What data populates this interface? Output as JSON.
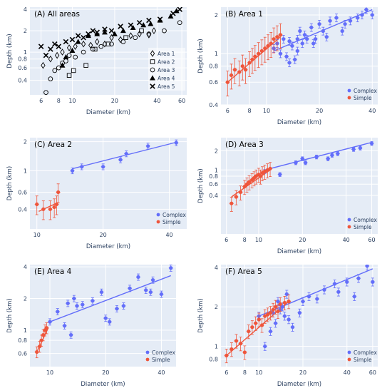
{
  "chart_data": [
    {
      "type": "scatter",
      "title": "(A) All areas",
      "xlabel": "Diameter (km)",
      "ylabel": "Depth (km)",
      "xscale": "log",
      "yscale": "log",
      "xlim": [
        5,
        65
      ],
      "ylim": [
        0.25,
        4.3
      ],
      "xticks": [
        6,
        8,
        10,
        20,
        40,
        60
      ],
      "yticks": [
        0.4,
        0.6,
        0.8,
        1,
        2,
        4
      ],
      "legend_position": "bottom-right",
      "show_fit": false,
      "series": [
        {
          "name": "Area 1",
          "marker": "diamond",
          "x": [
            6.2,
            7.0,
            7.8,
            8.5,
            9.5,
            10.5,
            12,
            13.5,
            15,
            17,
            19,
            22,
            26,
            30,
            35,
            38
          ],
          "y": [
            0.65,
            0.8,
            0.9,
            1.0,
            1.15,
            1.2,
            1.3,
            1.25,
            1.4,
            1.3,
            1.6,
            1.5,
            1.7,
            1.8,
            1.75,
            2.0
          ]
        },
        {
          "name": "Area 2",
          "marker": "square",
          "x": [
            9.5,
            10.2,
            12.5,
            14.5,
            18,
            24,
            31
          ],
          "y": [
            0.47,
            0.55,
            0.65,
            1.1,
            1.3,
            1.6,
            2.0
          ]
        },
        {
          "name": "Area 3",
          "marker": "circle",
          "x": [
            6.5,
            7.0,
            7.5,
            8.0,
            8.5,
            9.0,
            9.5,
            10.5,
            12,
            14,
            16,
            19,
            23,
            28,
            35,
            45,
            58
          ],
          "y": [
            0.27,
            0.42,
            0.55,
            0.6,
            0.7,
            0.75,
            0.9,
            0.85,
            1.0,
            1.1,
            1.2,
            1.3,
            1.4,
            1.6,
            1.8,
            2.0,
            2.6
          ]
        },
        {
          "name": "Area 4",
          "marker": "triangle",
          "x": [
            8.5,
            9.0,
            10,
            11,
            13,
            15,
            17,
            20,
            23,
            27,
            32,
            36,
            42,
            50,
            55
          ],
          "y": [
            0.65,
            0.85,
            1.05,
            1.4,
            1.7,
            1.8,
            1.9,
            1.8,
            2.0,
            2.2,
            2.4,
            2.5,
            2.8,
            3.2,
            3.8
          ]
        },
        {
          "name": "Area 5",
          "marker": "x",
          "x": [
            6,
            6.5,
            7,
            7.5,
            8,
            9,
            10,
            11,
            12,
            13,
            14,
            15,
            17,
            19,
            22,
            26,
            30,
            35,
            42,
            52,
            58
          ],
          "y": [
            1.2,
            0.9,
            1.1,
            1.3,
            1.2,
            1.4,
            1.5,
            1.7,
            1.6,
            1.8,
            2.0,
            1.9,
            2.1,
            2.0,
            2.3,
            2.4,
            2.6,
            2.8,
            2.9,
            3.5,
            4.0
          ]
        }
      ]
    },
    {
      "type": "scatter",
      "title": "(B) Area 1",
      "xlabel": "Diameter (km)",
      "ylabel": "Depth (km)",
      "xscale": "log",
      "yscale": "log",
      "xlim": [
        5.5,
        43
      ],
      "ylim": [
        0.4,
        2.3
      ],
      "xticks": [
        6,
        8,
        10,
        20,
        40
      ],
      "yticks": [
        0.4,
        0.6,
        0.8,
        1,
        2
      ],
      "legend_position": "bottom-right",
      "show_fit": true,
      "series": [
        {
          "name": "Complex",
          "x": [
            11.0,
            11.5,
            12.0,
            12.5,
            13.0,
            13.5,
            13.5,
            14.0,
            14.5,
            15.0,
            15.0,
            15.5,
            16.0,
            16.5,
            17.0,
            18.0,
            18.5,
            19.0,
            20.0,
            21.0,
            22.0,
            23.0,
            25.0,
            27.0,
            28.0,
            30.0,
            33.0,
            35.0,
            37.0,
            40.0
          ],
          "y": [
            1.1,
            1.2,
            1.0,
            1.3,
            0.95,
            1.25,
            0.85,
            1.15,
            0.9,
            1.3,
            1.05,
            1.5,
            1.2,
            1.4,
            1.3,
            1.6,
            1.2,
            1.3,
            1.7,
            1.5,
            1.35,
            1.8,
            1.9,
            1.5,
            1.7,
            1.8,
            1.9,
            2.0,
            2.2,
            2.0
          ],
          "yerr_frac": 0.07
        },
        {
          "name": "Simple",
          "x": [
            6.0,
            6.3,
            6.6,
            7.0,
            7.3,
            7.6,
            8.0,
            8.3,
            8.6,
            9.0,
            9.4,
            9.8,
            10.2,
            10.6,
            11.0,
            11.5,
            12.0
          ],
          "y": [
            0.6,
            0.68,
            0.75,
            0.72,
            0.8,
            0.75,
            0.85,
            0.9,
            0.95,
            1.0,
            1.05,
            1.1,
            1.15,
            1.2,
            1.3,
            1.35,
            1.4
          ],
          "yerr_frac": 0.22
        }
      ],
      "fit": {
        "Complex": {
          "x": [
            11.0,
            40.0
          ],
          "y": [
            1.05,
            2.2
          ]
        },
        "Simple": {
          "x": [
            6.0,
            12.0
          ],
          "y": [
            0.6,
            1.35
          ]
        }
      }
    },
    {
      "type": "scatter",
      "title": "(C) Area 2",
      "xlabel": "Diameter (km)",
      "ylabel": "Depth (km)",
      "xscale": "log",
      "yscale": "log",
      "xlim": [
        9.3,
        48
      ],
      "ylim": [
        0.25,
        2.2
      ],
      "xticks": [
        10,
        20,
        40
      ],
      "yticks": [
        0.4,
        0.6,
        1,
        2
      ],
      "legend_position": "bottom-right",
      "show_fit": true,
      "series": [
        {
          "name": "Complex",
          "x": [
            14.5,
            16.0,
            20.0,
            24.0,
            25.5,
            32.0,
            43.0
          ],
          "y": [
            1.0,
            1.1,
            1.1,
            1.3,
            1.5,
            1.8,
            1.95
          ],
          "yerr_frac": 0.07
        },
        {
          "name": "Simple",
          "x": [
            10.0,
            10.7,
            11.5,
            12.0,
            12.3,
            12.5
          ],
          "y": [
            0.45,
            0.4,
            0.4,
            0.42,
            0.45,
            0.6
          ],
          "yerr_frac": 0.22
        }
      ],
      "fit": {
        "Complex": {
          "x": [
            14.5,
            43.0
          ],
          "y": [
            1.05,
            1.97
          ]
        },
        "Simple": {
          "x": [
            10.2,
            12.5
          ],
          "y": [
            0.38,
            0.47
          ]
        }
      }
    },
    {
      "type": "scatter",
      "title": "(D) Area 3",
      "xlabel": "Diameter (km)",
      "ylabel": "Depth (km)",
      "xscale": "log",
      "yscale": "log",
      "xlim": [
        5.5,
        66
      ],
      "ylim": [
        0.1,
        3.2
      ],
      "xticks": [
        6,
        8,
        10,
        20,
        40,
        60
      ],
      "yticks": [
        0.4,
        0.6,
        0.8,
        1,
        2
      ],
      "legend_position": "bottom-right",
      "show_fit": true,
      "series": [
        {
          "name": "Complex",
          "x": [
            11.0,
            14.0,
            18.0,
            20.0,
            21.0,
            25.0,
            30.0,
            32.0,
            35.0,
            45.0,
            50.0,
            60.0
          ],
          "y": [
            0.95,
            0.85,
            1.3,
            1.5,
            1.3,
            1.6,
            1.5,
            1.7,
            1.8,
            2.1,
            2.2,
            2.6
          ],
          "yerr_frac": 0.07
        },
        {
          "name": "Simple",
          "x": [
            6.5,
            7.0,
            7.5,
            8.0,
            8.3,
            8.6,
            9.0,
            9.3,
            9.6,
            10.0,
            10.3,
            10.6,
            11.0,
            11.5,
            12.0
          ],
          "y": [
            0.3,
            0.38,
            0.45,
            0.55,
            0.6,
            0.65,
            0.7,
            0.75,
            0.8,
            0.85,
            0.8,
            0.9,
            0.95,
            1.0,
            1.05
          ],
          "yerr_frac": 0.25
        }
      ],
      "fit": {
        "Complex": {
          "x": [
            12.0,
            60.0
          ],
          "y": [
            1.05,
            2.7
          ]
        },
        "Simple": {
          "x": [
            6.5,
            12.0
          ],
          "y": [
            0.38,
            1.0
          ]
        }
      }
    },
    {
      "type": "scatter",
      "title": "(E) Area 4",
      "xlabel": "Diameter (km)",
      "ylabel": "Depth (km)",
      "xscale": "log",
      "yscale": "log",
      "xlim": [
        7.8,
        48
      ],
      "ylim": [
        0.45,
        4.2
      ],
      "xticks": [
        10,
        20,
        40
      ],
      "yticks": [
        0.6,
        0.8,
        1,
        2,
        4
      ],
      "legend_position": "bottom-right",
      "show_fit": true,
      "series": [
        {
          "name": "Complex",
          "x": [
            10.0,
            11.0,
            12.0,
            12.5,
            13.0,
            13.5,
            14.0,
            15.0,
            17.0,
            19.0,
            20.0,
            21.0,
            23.0,
            25.0,
            27.0,
            30.0,
            33.0,
            35.0,
            36.0,
            40.0,
            45.0
          ],
          "y": [
            1.2,
            1.5,
            1.1,
            1.8,
            0.9,
            2.0,
            1.7,
            1.75,
            1.9,
            2.3,
            1.3,
            1.2,
            1.6,
            1.7,
            2.5,
            3.2,
            2.4,
            2.3,
            3.0,
            2.2,
            3.9
          ],
          "yerr_frac": 0.07
        },
        {
          "name": "Simple",
          "x": [
            8.5,
            8.8,
            9.0,
            9.2,
            9.4,
            9.6
          ],
          "y": [
            0.62,
            0.7,
            0.8,
            0.9,
            1.0,
            1.05
          ],
          "yerr_frac": 0.12
        }
      ],
      "fit": {
        "Complex": {
          "x": [
            10.0,
            45.0
          ],
          "y": [
            1.2,
            3.3
          ]
        },
        "Simple": {
          "x": [
            8.5,
            9.8
          ],
          "y": [
            0.62,
            1.05
          ]
        }
      }
    },
    {
      "type": "scatter",
      "title": "(F) Area 5",
      "xlabel": "Diameter (km)",
      "ylabel": "Depth (km)",
      "xscale": "log",
      "yscale": "log",
      "xlim": [
        5.5,
        65
      ],
      "ylim": [
        0.7,
        4.2
      ],
      "xticks": [
        6,
        8,
        10,
        20,
        40,
        60
      ],
      "yticks": [
        0.8,
        1,
        2,
        4
      ],
      "legend_position": "bottom-right",
      "show_fit": true,
      "series": [
        {
          "name": "Complex",
          "x": [
            10.0,
            11.0,
            12.0,
            12.5,
            13.0,
            13.5,
            14.0,
            14.5,
            15.0,
            15.5,
            16.0,
            17.0,
            19.0,
            20.0,
            22.0,
            25.0,
            28.0,
            33.0,
            35.0,
            40.0,
            45.0,
            48.0,
            55.0,
            60.0
          ],
          "y": [
            1.7,
            1.0,
            1.3,
            1.8,
            1.5,
            2.2,
            1.9,
            2.0,
            1.7,
            2.5,
            1.6,
            1.4,
            1.8,
            2.2,
            2.4,
            2.3,
            2.7,
            3.0,
            2.6,
            3.1,
            2.4,
            3.3,
            4.1,
            3.1
          ],
          "yerr_frac": 0.07
        },
        {
          "name": "Simple",
          "x": [
            6.0,
            6.5,
            7.0,
            7.5,
            8.0,
            8.5,
            9.0,
            9.5,
            10.0,
            10.5,
            11.0,
            11.5,
            12.0,
            12.5,
            13.0,
            13.5,
            14.0,
            15.0,
            16.0
          ],
          "y": [
            0.85,
            0.95,
            1.1,
            1.05,
            0.9,
            1.3,
            1.4,
            1.5,
            1.6,
            1.45,
            1.7,
            1.75,
            1.8,
            1.9,
            2.0,
            1.85,
            2.1,
            2.15,
            2.2
          ],
          "yerr_frac": 0.12
        }
      ],
      "fit": {
        "Complex": {
          "x": [
            10.0,
            60.0
          ],
          "y": [
            1.7,
            3.9
          ]
        },
        "Simple": {
          "x": [
            6.0,
            16.0
          ],
          "y": [
            0.85,
            2.2
          ]
        }
      }
    }
  ],
  "colors": {
    "plot_bg": "#e5ecf6",
    "grid": "#ffffff",
    "complex": "#636efa",
    "simple": "#ef553b",
    "text": "#2a3f5f"
  }
}
